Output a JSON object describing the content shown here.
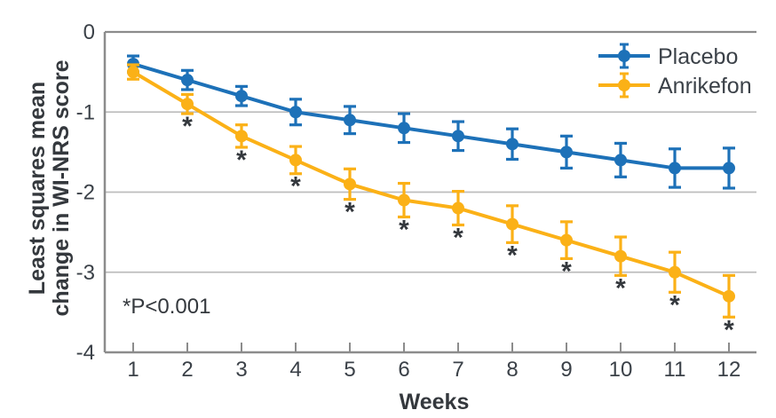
{
  "chart_data": {
    "type": "line",
    "title": "",
    "xlabel": "Weeks",
    "ylabel_lines": [
      "Least squares mean",
      "change in WI-NRS score"
    ],
    "x": [
      1,
      2,
      3,
      4,
      5,
      6,
      7,
      8,
      9,
      10,
      11,
      12
    ],
    "x_tick_labels": [
      "1",
      "2",
      "3",
      "4",
      "5",
      "6",
      "7",
      "8",
      "9",
      "10",
      "11",
      "12"
    ],
    "y_tick_values": [
      0,
      -1,
      -2,
      -3,
      -4
    ],
    "y_tick_labels": [
      "0",
      "-1",
      "-2",
      "-3",
      "-4"
    ],
    "ylim": [
      -4,
      0
    ],
    "grid": "horizontal",
    "legend_position": "top-right",
    "annotation": "*P<0.001",
    "sig_symbol": "*",
    "series": [
      {
        "name": "Placebo",
        "color": "#1d71b8",
        "values": [
          -0.4,
          -0.6,
          -0.8,
          -1.0,
          -1.1,
          -1.2,
          -1.3,
          -1.4,
          -1.5,
          -1.6,
          -1.7,
          -1.7
        ],
        "errors": [
          0.1,
          0.12,
          0.12,
          0.16,
          0.17,
          0.18,
          0.18,
          0.19,
          0.2,
          0.21,
          0.24,
          0.25
        ],
        "significant": [
          false,
          false,
          false,
          false,
          false,
          false,
          false,
          false,
          false,
          false,
          false,
          false
        ]
      },
      {
        "name": "Anrikefon",
        "color": "#fbb117",
        "values": [
          -0.5,
          -0.9,
          -1.3,
          -1.6,
          -1.9,
          -2.1,
          -2.2,
          -2.4,
          -2.6,
          -2.8,
          -3.0,
          -3.3
        ],
        "errors": [
          0.09,
          0.12,
          0.14,
          0.17,
          0.19,
          0.21,
          0.21,
          0.23,
          0.23,
          0.24,
          0.25,
          0.26
        ],
        "significant": [
          false,
          true,
          true,
          true,
          true,
          true,
          true,
          true,
          true,
          true,
          true,
          true
        ]
      }
    ],
    "colors": {
      "grid": "#bdbdbd",
      "axis": "#8c8c8c",
      "text": "#3b4148",
      "annotation": "#34383d",
      "background": "#ffffff"
    }
  }
}
